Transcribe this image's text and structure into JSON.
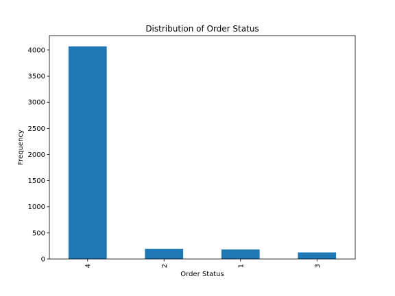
{
  "chart_data": {
    "type": "bar",
    "title": "Distribution of Order Status",
    "xlabel": "Order Status",
    "ylabel": "Frequency",
    "categories": [
      "4",
      "2",
      "1",
      "3"
    ],
    "values": [
      4070,
      195,
      182,
      125
    ],
    "ylim": [
      0,
      4275
    ],
    "yticks": [
      0,
      500,
      1000,
      1500,
      2000,
      2500,
      3000,
      3500,
      4000
    ],
    "ytick_labels": [
      "0",
      "500",
      "1000",
      "1500",
      "2000",
      "2500",
      "3000",
      "3500",
      "4000"
    ],
    "grid": false,
    "legend": false,
    "bar_color": "#1f77b4"
  }
}
